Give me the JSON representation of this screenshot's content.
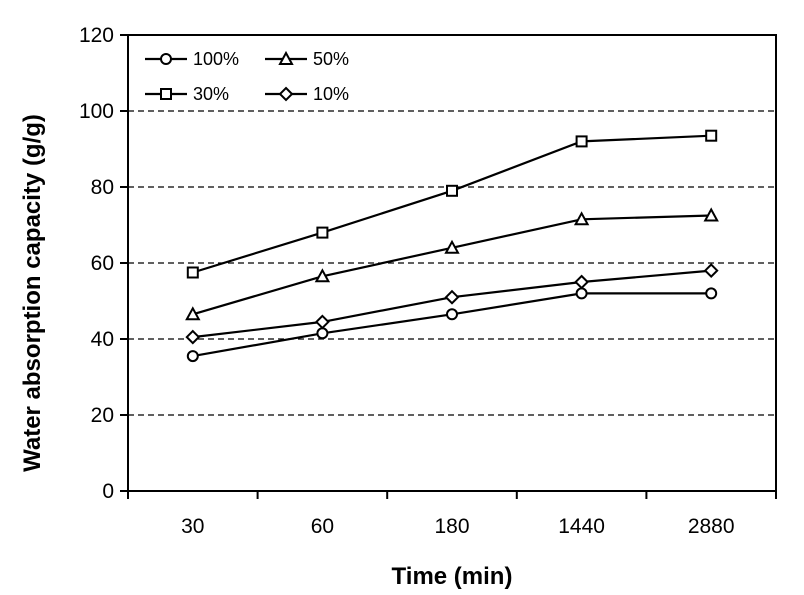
{
  "chart_data": {
    "type": "line",
    "categories": [
      "30",
      "60",
      "180",
      "1440",
      "2880"
    ],
    "xlabel": "Time (min)",
    "ylabel": "Water absorption capacity (g/g)",
    "ylim": [
      0,
      120
    ],
    "yticks": [
      0,
      20,
      40,
      60,
      80,
      100,
      120
    ],
    "grid": "dashed horizontal at 20, 40, 60, 80, 100",
    "legend_position": "top-left",
    "series": [
      {
        "name": "100%",
        "marker": "circle",
        "values": [
          35.5,
          41.5,
          46.5,
          52.0,
          52.0
        ]
      },
      {
        "name": "50%",
        "marker": "triangle",
        "values": [
          46.5,
          56.5,
          64.0,
          71.5,
          72.5
        ]
      },
      {
        "name": "30%",
        "marker": "square",
        "values": [
          57.5,
          68.0,
          79.0,
          92.0,
          93.5
        ]
      },
      {
        "name": "10%",
        "marker": "diamond",
        "values": [
          40.5,
          44.5,
          51.0,
          55.0,
          58.0
        ]
      }
    ]
  }
}
